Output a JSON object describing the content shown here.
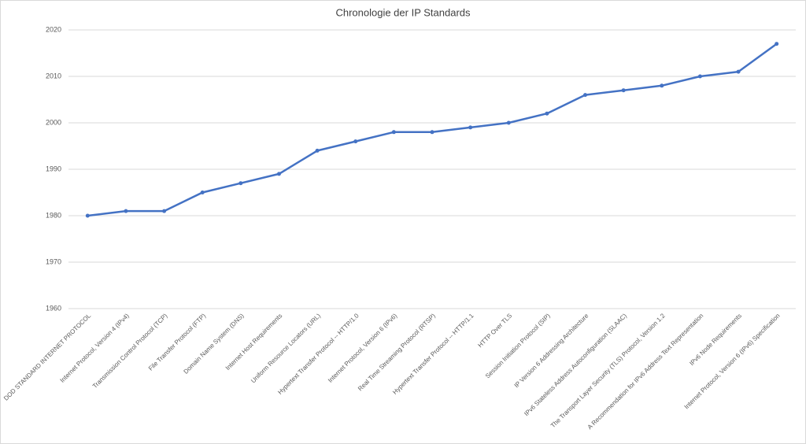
{
  "chart_data": {
    "type": "line",
    "title": "Chronologie der IP Standards",
    "categories": [
      "DOD STANDARD INTERNET PROTOCOL",
      "Internet Protocol, Version 4 (IPv4)",
      "Transmission Control Protocol (TCP)",
      "File Transfer Protocol (FTP)",
      "Domain Name System (DNS)",
      "Internet Host Requirements",
      "Uniform Resource Locators (URL)",
      "Hypertext Transfer Protocol -- HTTP/1.0",
      "Internet Protocol, Version 6 (IPv6)",
      "Real Time Streaming Protocol (RTSP)",
      "Hypertext Transfer Protocol -- HTTP/1.1",
      "HTTP Over TLS",
      "Session Initiation Protocol (SIP)",
      "IP Version 6 Addressing Architecture",
      "IPv6 Stateless Address Autoconfiguration (SLAAC)",
      "The Transport Layer Security (TLS) Protocol, Version 1.2",
      "A Recommendation for IPv6 Address Text Representation",
      "IPv6 Node Requirements",
      "Internet Protocol, Version 6 (IPv6) Specification"
    ],
    "values": [
      1980,
      1981,
      1981,
      1985,
      1987,
      1989,
      1994,
      1996,
      1998,
      1998,
      1999,
      2000,
      2002,
      2006,
      2007,
      2008,
      2010,
      2011,
      2017
    ],
    "color": "#4472c4",
    "ylim": [
      1960,
      2020
    ],
    "yticks": [
      1960,
      1970,
      1980,
      1990,
      2000,
      2010,
      2020
    ],
    "grid": true
  }
}
